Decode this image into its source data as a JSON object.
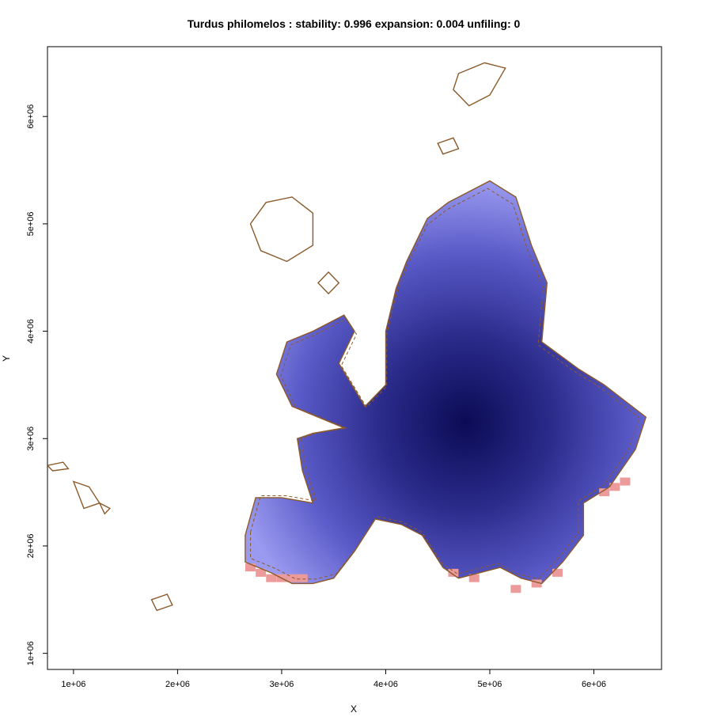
{
  "chart_data": {
    "type": "heatmap",
    "title": "Turdus philomelos : stability: 0.996 expansion: 0.004 unfiling: 0",
    "xlabel": "X",
    "ylabel": "Y",
    "xlim": [
      750000,
      6650000
    ],
    "ylim": [
      850000,
      6650000
    ],
    "x_ticks": [
      {
        "value": 1000000,
        "label": "1e+06"
      },
      {
        "value": 2000000,
        "label": "2e+06"
      },
      {
        "value": 3000000,
        "label": "3e+06"
      },
      {
        "value": 4000000,
        "label": "4e+06"
      },
      {
        "value": 5000000,
        "label": "5e+06"
      },
      {
        "value": 6000000,
        "label": "6e+06"
      }
    ],
    "y_ticks": [
      {
        "value": 1000000,
        "label": "1e+06"
      },
      {
        "value": 2000000,
        "label": "2e+06"
      },
      {
        "value": 3000000,
        "label": "3e+06"
      },
      {
        "value": 4000000,
        "label": "4e+06"
      },
      {
        "value": 5000000,
        "label": "5e+06"
      },
      {
        "value": 6000000,
        "label": "6e+06"
      }
    ],
    "grid": false,
    "colors": {
      "stability_gradient": [
        "#0b0b55",
        "#2a2a8a",
        "#5a5ac8",
        "#9a9af0"
      ],
      "expansion": "#ec9a9a",
      "outline": "#8b5a2b"
    },
    "range_polygon": [
      [
        2650000,
        2100000
      ],
      [
        2750000,
        2450000
      ],
      [
        3000000,
        2450000
      ],
      [
        3300000,
        2400000
      ],
      [
        3200000,
        2700000
      ],
      [
        3150000,
        3000000
      ],
      [
        3300000,
        3050000
      ],
      [
        3600000,
        3100000
      ],
      [
        3100000,
        3300000
      ],
      [
        2950000,
        3600000
      ],
      [
        3050000,
        3900000
      ],
      [
        3300000,
        4000000
      ],
      [
        3600000,
        4150000
      ],
      [
        3700000,
        4000000
      ],
      [
        3550000,
        3700000
      ],
      [
        3800000,
        3300000
      ],
      [
        4000000,
        3500000
      ],
      [
        4000000,
        4000000
      ],
      [
        4100000,
        4400000
      ],
      [
        4200000,
        4650000
      ],
      [
        4400000,
        5050000
      ],
      [
        4600000,
        5200000
      ],
      [
        5000000,
        5400000
      ],
      [
        5250000,
        5250000
      ],
      [
        5400000,
        4800000
      ],
      [
        5550000,
        4450000
      ],
      [
        5500000,
        3900000
      ],
      [
        5850000,
        3650000
      ],
      [
        6100000,
        3500000
      ],
      [
        6300000,
        3350000
      ],
      [
        6500000,
        3200000
      ],
      [
        6400000,
        2900000
      ],
      [
        6150000,
        2550000
      ],
      [
        5900000,
        2400000
      ],
      [
        5900000,
        2100000
      ],
      [
        5700000,
        1850000
      ],
      [
        5500000,
        1650000
      ],
      [
        5300000,
        1700000
      ],
      [
        5100000,
        1800000
      ],
      [
        4900000,
        1750000
      ],
      [
        4700000,
        1700000
      ],
      [
        4550000,
        1800000
      ],
      [
        4350000,
        2100000
      ],
      [
        4150000,
        2200000
      ],
      [
        3900000,
        2250000
      ],
      [
        3700000,
        1950000
      ],
      [
        3500000,
        1700000
      ],
      [
        3300000,
        1650000
      ],
      [
        3100000,
        1650000
      ],
      [
        2900000,
        1750000
      ],
      [
        2650000,
        1850000
      ]
    ],
    "islands": [
      [
        [
          2700000,
          5000000
        ],
        [
          2850000,
          5200000
        ],
        [
          3100000,
          5250000
        ],
        [
          3300000,
          5100000
        ],
        [
          3300000,
          4800000
        ],
        [
          3050000,
          4650000
        ],
        [
          2800000,
          4750000
        ]
      ],
      [
        [
          4700000,
          6400000
        ],
        [
          4950000,
          6500000
        ],
        [
          5150000,
          6450000
        ],
        [
          5000000,
          6200000
        ],
        [
          4800000,
          6100000
        ],
        [
          4650000,
          6250000
        ]
      ],
      [
        [
          4500000,
          5750000
        ],
        [
          4650000,
          5800000
        ],
        [
          4700000,
          5700000
        ],
        [
          4550000,
          5650000
        ]
      ],
      [
        [
          3350000,
          4450000
        ],
        [
          3450000,
          4550000
        ],
        [
          3550000,
          4450000
        ],
        [
          3450000,
          4350000
        ]
      ],
      [
        [
          750000,
          2750000
        ],
        [
          900000,
          2780000
        ],
        [
          950000,
          2720000
        ],
        [
          800000,
          2700000
        ]
      ],
      [
        [
          1000000,
          2600000
        ],
        [
          1150000,
          2550000
        ],
        [
          1250000,
          2400000
        ],
        [
          1100000,
          2350000
        ]
      ],
      [
        [
          1250000,
          2400000
        ],
        [
          1350000,
          2350000
        ],
        [
          1300000,
          2300000
        ]
      ],
      [
        [
          1750000,
          1500000
        ],
        [
          1900000,
          1550000
        ],
        [
          1950000,
          1450000
        ],
        [
          1800000,
          1400000
        ]
      ]
    ],
    "expansion_cells": [
      [
        2700000,
        1800000
      ],
      [
        2800000,
        1750000
      ],
      [
        2900000,
        1700000
      ],
      [
        3000000,
        1700000
      ],
      [
        3100000,
        1700000
      ],
      [
        3200000,
        1700000
      ],
      [
        4650000,
        1750000
      ],
      [
        4850000,
        1700000
      ],
      [
        5250000,
        1600000
      ],
      [
        5450000,
        1650000
      ],
      [
        5650000,
        1750000
      ],
      [
        6100000,
        2500000
      ],
      [
        6200000,
        2550000
      ],
      [
        6300000,
        2600000
      ]
    ]
  }
}
